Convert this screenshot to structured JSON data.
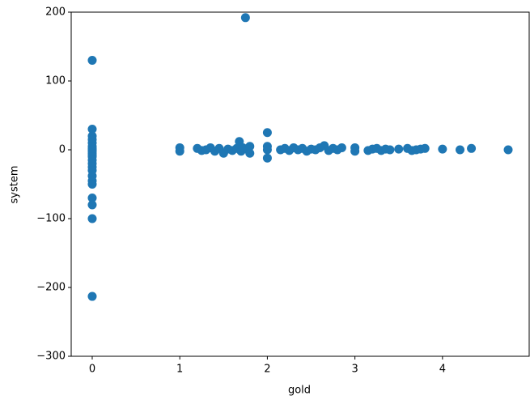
{
  "chart_data": {
    "type": "scatter",
    "xlabel": "gold",
    "ylabel": "system",
    "color": "#1f77b4",
    "x": [
      0,
      0,
      0,
      0,
      0,
      0,
      0,
      0,
      0,
      0,
      0,
      0,
      0,
      0,
      0,
      0,
      0,
      0,
      0,
      0,
      0,
      0,
      0,
      1.75,
      2.0,
      2.0,
      2.0,
      2.0,
      1.0,
      1.0,
      1.2,
      1.25,
      1.3,
      1.35,
      1.4,
      1.45,
      1.5,
      1.55,
      1.6,
      1.65,
      1.68,
      1.7,
      1.72,
      1.78,
      1.8,
      1.8,
      2.15,
      2.2,
      2.25,
      2.3,
      2.35,
      2.4,
      2.45,
      2.5,
      2.55,
      2.6,
      2.65,
      2.7,
      2.75,
      2.8,
      2.85,
      3.0,
      3.0,
      3.15,
      3.2,
      3.25,
      3.3,
      3.35,
      3.4,
      3.5,
      3.6,
      3.65,
      3.7,
      3.75,
      3.8,
      4.0,
      4.2,
      4.33,
      4.75
    ],
    "values": [
      130,
      30,
      20,
      15,
      10,
      5,
      2,
      0,
      -2,
      -5,
      -8,
      -10,
      -15,
      -20,
      -25,
      -30,
      -38,
      -45,
      -50,
      -70,
      -80,
      -100,
      -213,
      192,
      25,
      -12,
      5,
      0,
      3,
      -2,
      2,
      -1,
      0,
      3,
      -2,
      2,
      -5,
      1,
      -1,
      2,
      12,
      -2,
      3,
      0,
      -5,
      5,
      0,
      2,
      -1,
      3,
      0,
      2,
      -2,
      1,
      0,
      3,
      6,
      -1,
      2,
      0,
      3,
      -2,
      3,
      -1,
      1,
      2,
      -1,
      1,
      0,
      1,
      2,
      -1,
      0,
      1,
      2,
      1,
      0,
      2,
      0
    ],
    "xlim": [
      -0.24,
      4.99
    ],
    "xticks": [
      0,
      1,
      2,
      3,
      4
    ],
    "ylim": [
      -300,
      200
    ],
    "yticks": [
      {
        "value": -300,
        "label": "−300"
      },
      {
        "value": -200,
        "label": "−200"
      },
      {
        "value": -100,
        "label": "−100"
      },
      0,
      100,
      200
    ]
  }
}
